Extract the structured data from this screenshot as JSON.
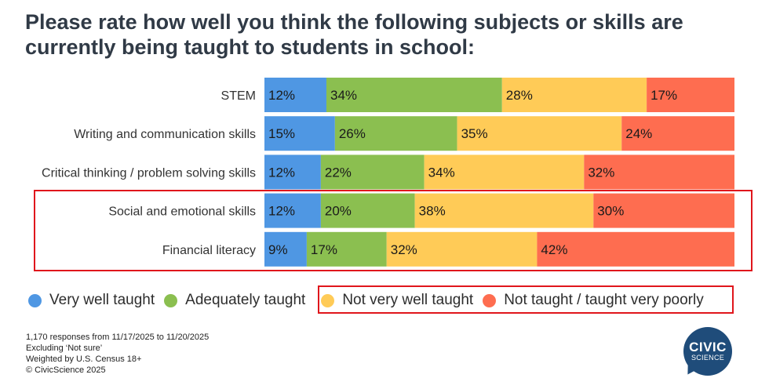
{
  "title": "Please rate how well you think the following subjects or skills are currently being taught to students in school:",
  "chart_data": {
    "type": "bar",
    "orientation": "horizontal",
    "stacked": true,
    "percent": true,
    "categories": [
      "STEM",
      "Writing and communication skills",
      "Critical thinking / problem solving skills",
      "Social and emotional skills",
      "Financial literacy"
    ],
    "series": [
      {
        "name": "Very well taught",
        "color": "#4f97e3",
        "values": [
          12,
          15,
          12,
          12,
          9
        ]
      },
      {
        "name": "Adequately taught",
        "color": "#8bbf50",
        "values": [
          34,
          26,
          22,
          20,
          17
        ]
      },
      {
        "name": "Not very well taught",
        "color": "#ffcb57",
        "values": [
          28,
          35,
          34,
          38,
          32
        ]
      },
      {
        "name": "Not taught / taught very poorly",
        "color": "#fe6d50",
        "values": [
          17,
          24,
          32,
          30,
          42
        ]
      }
    ],
    "highlighted_categories": [
      "Social and emotional skills",
      "Financial literacy"
    ],
    "highlighted_legend": [
      "Not very well taught",
      "Not taught / taught very poorly"
    ],
    "highlight_color": "#e0161c",
    "legend_position": "bottom"
  },
  "notes": [
    "1,170 responses from 11/17/2025 to 11/20/2025",
    "Excluding ‘Not sure’",
    "Weighted by U.S. Census 18+",
    "© CivicScience 2025"
  ],
  "logo": {
    "line1": "CIVIC",
    "line2": "SCIENCE",
    "color": "#1f4c7a"
  }
}
